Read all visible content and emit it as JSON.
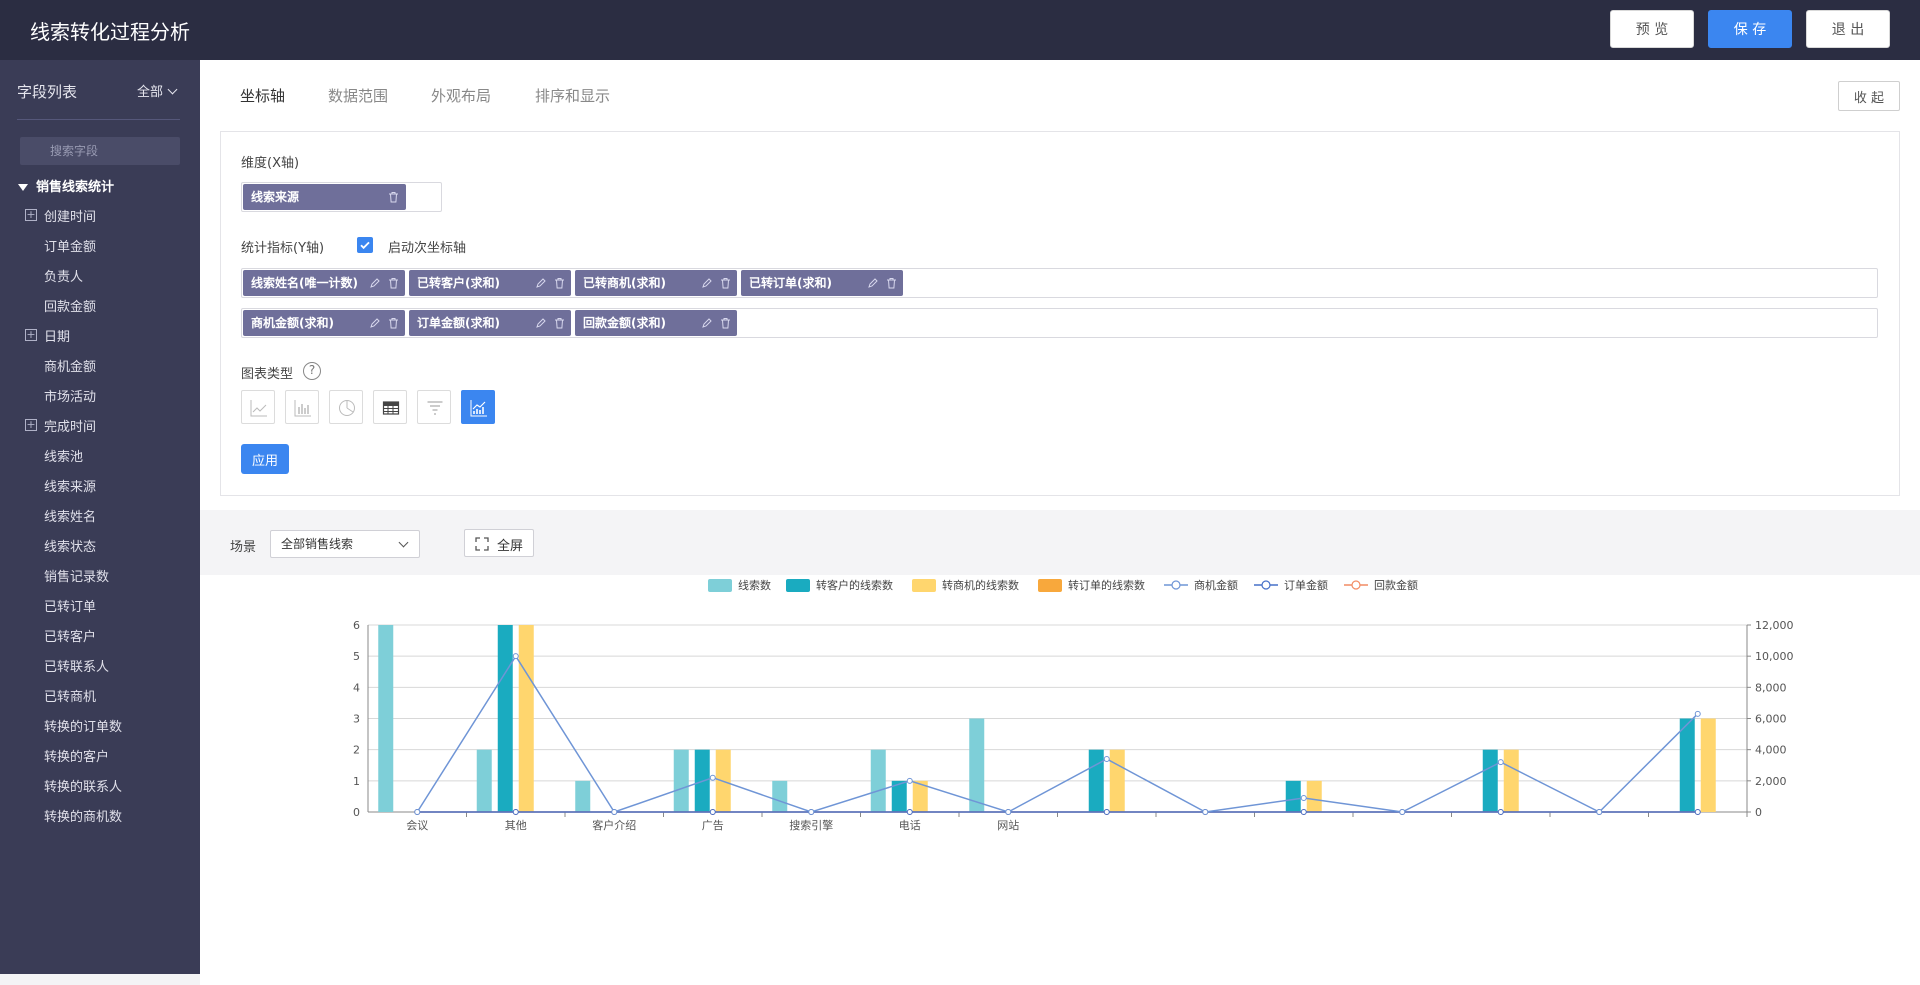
{
  "header": {
    "title": "线索转化过程分析",
    "preview_label": "预 览",
    "save_label": "保 存",
    "exit_label": "退 出"
  },
  "sidebar": {
    "title": "字段列表",
    "filter": "全部",
    "search_placeholder": "搜索字段",
    "group": "销售线索统计",
    "items": [
      {
        "label": "创建时间",
        "expandable": true
      },
      {
        "label": "订单金额",
        "expandable": false
      },
      {
        "label": "负责人",
        "expandable": false
      },
      {
        "label": "回款金额",
        "expandable": false
      },
      {
        "label": "日期",
        "expandable": true
      },
      {
        "label": "商机金额",
        "expandable": false
      },
      {
        "label": "市场活动",
        "expandable": false
      },
      {
        "label": "完成时间",
        "expandable": true
      },
      {
        "label": "线索池",
        "expandable": false
      },
      {
        "label": "线索来源",
        "expandable": false
      },
      {
        "label": "线索姓名",
        "expandable": false
      },
      {
        "label": "线索状态",
        "expandable": false
      },
      {
        "label": "销售记录数",
        "expandable": false
      },
      {
        "label": "已转订单",
        "expandable": false
      },
      {
        "label": "已转客户",
        "expandable": false
      },
      {
        "label": "已转联系人",
        "expandable": false
      },
      {
        "label": "已转商机",
        "expandable": false
      },
      {
        "label": "转换的订单数",
        "expandable": false
      },
      {
        "label": "转换的客户",
        "expandable": false
      },
      {
        "label": "转换的联系人",
        "expandable": false
      },
      {
        "label": "转换的商机数",
        "expandable": false
      }
    ]
  },
  "tabs": [
    "坐标轴",
    "数据范围",
    "外观布局",
    "排序和显示"
  ],
  "collapse_label": "收 起",
  "config": {
    "dimension_label": "维度(X轴)",
    "dimension_pill": "线索来源",
    "metric_label": "统计指标(Y轴)",
    "secondary_axis_label": "启动次坐标轴",
    "metrics_row1": [
      "线索姓名(唯一计数)",
      "已转客户(求和)",
      "已转商机(求和)",
      "已转订单(求和)"
    ],
    "metrics_row2": [
      "商机金额(求和)",
      "订单金额(求和)",
      "回款金额(求和)"
    ],
    "chart_type_label": "图表类型",
    "help": "?",
    "chart_types": [
      "line-chart-icon",
      "bar-chart-icon",
      "pie-chart-icon",
      "table-icon",
      "funnel-icon",
      "combo-chart-icon"
    ],
    "apply_label": "应用"
  },
  "scene": {
    "label": "场景",
    "selected": "全部销售线索",
    "fullscreen_label": "全屏"
  },
  "colors": {
    "series1": "#7ecfd8",
    "series2": "#1aabc0",
    "series3": "#ffd66e",
    "series4": "#f8a83c",
    "line_opp": "#6f95d6",
    "line_order": "#4670c8",
    "line_pay": "#f28c64"
  },
  "chart_data": {
    "type": "bar",
    "categories": [
      "会议",
      "其他",
      "客户介绍",
      "广告",
      "搜索引擎",
      "电话",
      "网站",
      "",
      "",
      "",
      "",
      "",
      "",
      ""
    ],
    "ylim": [
      0,
      6
    ],
    "yticks": [
      "0",
      "1",
      "2",
      "3",
      "4",
      "5",
      "6"
    ],
    "y2lim": [
      0,
      12000
    ],
    "y2ticks": [
      "0",
      "2,000",
      "4,000",
      "6,000",
      "8,000",
      "10,000",
      "12,000"
    ],
    "legend": [
      "线索数",
      "转客户的线索数",
      "转商机的线索数",
      "转订单的线索数",
      "商机金额",
      "订单金额",
      "回款金额"
    ],
    "series": [
      {
        "name": "线索数",
        "values": [
          6,
          2,
          1,
          2,
          1,
          2,
          3,
          0,
          0,
          0,
          0,
          0,
          0,
          0
        ]
      },
      {
        "name": "转客户的线索数",
        "values": [
          0,
          6,
          0,
          2,
          0,
          1,
          0,
          2,
          0,
          1,
          0,
          2,
          0,
          3
        ]
      },
      {
        "name": "转商机的线索数",
        "values": [
          0,
          6,
          0,
          2,
          0,
          1,
          0,
          2,
          0,
          1,
          0,
          2,
          0,
          3
        ]
      },
      {
        "name": "转订单的线索数",
        "values": [
          0,
          0,
          0,
          0,
          0,
          0,
          0,
          0,
          0,
          0,
          0,
          0,
          0,
          0
        ]
      }
    ],
    "lines": [
      {
        "name": "商机金额",
        "values": [
          0,
          10000,
          0,
          2200,
          0,
          2000,
          0,
          3400,
          0,
          900,
          0,
          3200,
          0,
          6300
        ]
      },
      {
        "name": "订单金额",
        "values": [
          0,
          0,
          0,
          0,
          0,
          0,
          0,
          0,
          0,
          0,
          0,
          0,
          0,
          0
        ]
      },
      {
        "name": "回款金额",
        "values": [
          0,
          0,
          0,
          0,
          0,
          0,
          0,
          0,
          0,
          0,
          0,
          0,
          0,
          0
        ]
      }
    ]
  }
}
